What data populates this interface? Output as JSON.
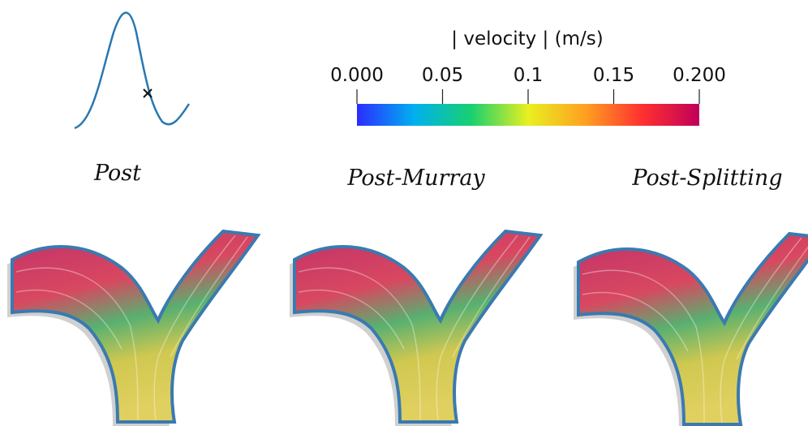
{
  "colorbar": {
    "title": "| velocity |  (m/s)",
    "range": [
      0,
      0.2
    ],
    "ticks": [
      {
        "value": 0,
        "label": "0.000"
      },
      0.05,
      0.1,
      0.15,
      {
        "value": 0.2,
        "label": "0.200"
      }
    ],
    "colors": [
      "#2c2cff",
      "#00b0f0",
      "#18d070",
      "#e8f020",
      "#ffa020",
      "#ff3030",
      "#c0005a"
    ]
  },
  "panels": [
    {
      "label": "Post"
    },
    {
      "label": "Post-Murray"
    },
    {
      "label": "Post-Splitting"
    }
  ]
}
